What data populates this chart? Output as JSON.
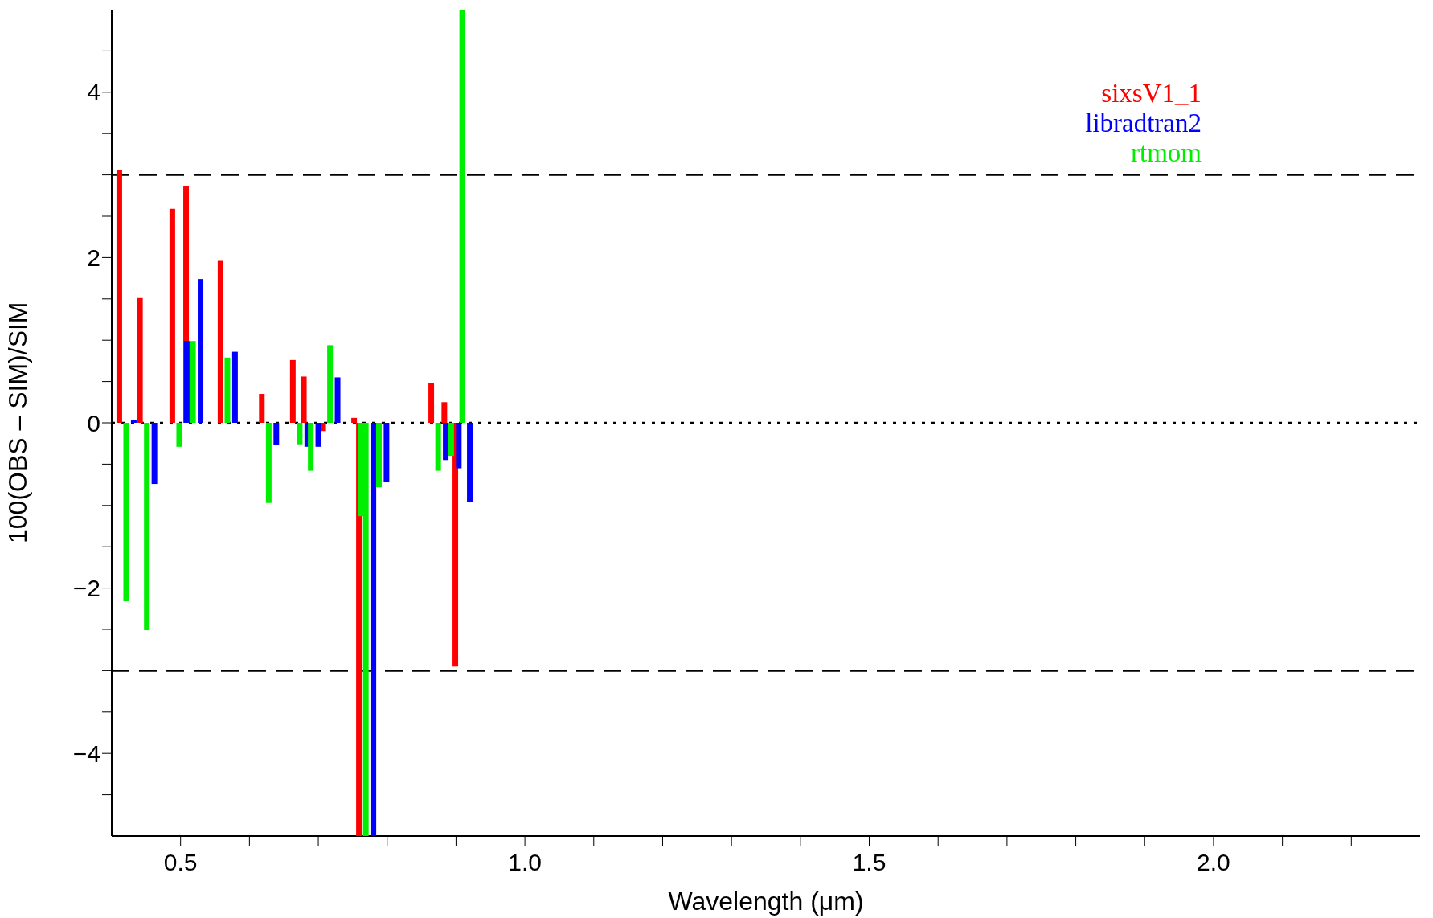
{
  "chart_data": {
    "type": "bar",
    "xlabel": "Wavelength (μm)",
    "ylabel": "100(OBS – SIM)/SIM",
    "x": [
      0.421,
      0.451,
      0.498,
      0.518,
      0.568,
      0.628,
      0.673,
      0.689,
      0.717,
      0.762,
      0.769,
      0.788,
      0.874,
      0.893,
      0.909
    ],
    "series": [
      {
        "name": "sixsV1_1",
        "color": "#ff0000",
        "x": [
          0.411,
          0.441,
          0.488,
          0.508,
          0.558,
          0.618,
          0.663,
          0.679,
          0.707,
          0.752,
          0.759,
          0.778,
          0.864,
          0.883,
          0.899
        ],
        "values": [
          3.06,
          1.51,
          2.59,
          2.86,
          1.96,
          0.35,
          0.76,
          0.56,
          -0.1,
          0.06,
          -5,
          null,
          0.48,
          0.25,
          -2.95
        ]
      },
      {
        "name": "libradtran2",
        "color": "#0000ff",
        "x": [
          0.432,
          0.462,
          0.509,
          0.529,
          0.579,
          0.639,
          0.684,
          0.7,
          0.728,
          0.773,
          0.78,
          0.799,
          0.885,
          0.904,
          0.92
        ],
        "values": [
          0.03,
          -0.74,
          0.99,
          1.74,
          0.86,
          -0.27,
          -0.29,
          -0.29,
          0.55,
          null,
          -5,
          -0.72,
          -0.45,
          -0.55,
          -0.96
        ]
      },
      {
        "name": "rtmom",
        "color": "#00ee00",
        "values": [
          -2.16,
          -2.51,
          -0.29,
          0.99,
          0.79,
          -0.97,
          -0.26,
          -0.58,
          0.94,
          -1.13,
          -5,
          -0.78,
          -0.58,
          -0.4,
          5
        ]
      }
    ],
    "xlim": [
      0.4,
      2.3
    ],
    "xticks": [
      {
        "value": 0.5,
        "label": "0.5"
      },
      {
        "value": 0.6,
        "label": null
      },
      {
        "value": 0.7,
        "label": null
      },
      {
        "value": 0.8,
        "label": null
      },
      {
        "value": 0.9,
        "label": null
      },
      {
        "value": 1,
        "label": "1.0"
      },
      {
        "value": 1.1,
        "label": null
      },
      {
        "value": 1.2,
        "label": null
      },
      {
        "value": 1.3,
        "label": null
      },
      {
        "value": 1.4,
        "label": null
      },
      {
        "value": 1.5,
        "label": "1.5"
      },
      {
        "value": 1.6,
        "label": null
      },
      {
        "value": 1.7,
        "label": null
      },
      {
        "value": 1.8,
        "label": null
      },
      {
        "value": 1.9,
        "label": null
      },
      {
        "value": 2,
        "label": "2.0"
      },
      {
        "value": 2.1,
        "label": null
      },
      {
        "value": 2.2,
        "label": null
      }
    ],
    "ylim": [
      -5,
      5
    ],
    "yticks": [
      {
        "value": -4.5,
        "label": null
      },
      -4,
      {
        "value": -3.5,
        "label": null
      },
      {
        "value": -3,
        "label": null
      },
      {
        "value": -2.5,
        "label": null
      },
      -2,
      {
        "value": -1.5,
        "label": null
      },
      {
        "value": -1,
        "label": null
      },
      {
        "value": -0.5,
        "label": null
      },
      0,
      {
        "value": 0.5,
        "label": null
      },
      {
        "value": 1,
        "label": null
      },
      {
        "value": 1.5,
        "label": null
      },
      2,
      {
        "value": 2.5,
        "label": null
      },
      {
        "value": 3,
        "label": null
      },
      {
        "value": 3.5,
        "label": null
      },
      4,
      {
        "value": 4.5,
        "label": null
      }
    ],
    "ref_lines": [
      {
        "axis": "y",
        "value": 3,
        "line_style": "dashed",
        "color": "#000000"
      },
      {
        "axis": "y",
        "value": -3,
        "line_style": "dashed",
        "color": "#000000"
      },
      {
        "axis": "y",
        "value": 0,
        "line_style": "dotted",
        "color": "#000000"
      }
    ],
    "legend": "top right",
    "grid": false
  }
}
